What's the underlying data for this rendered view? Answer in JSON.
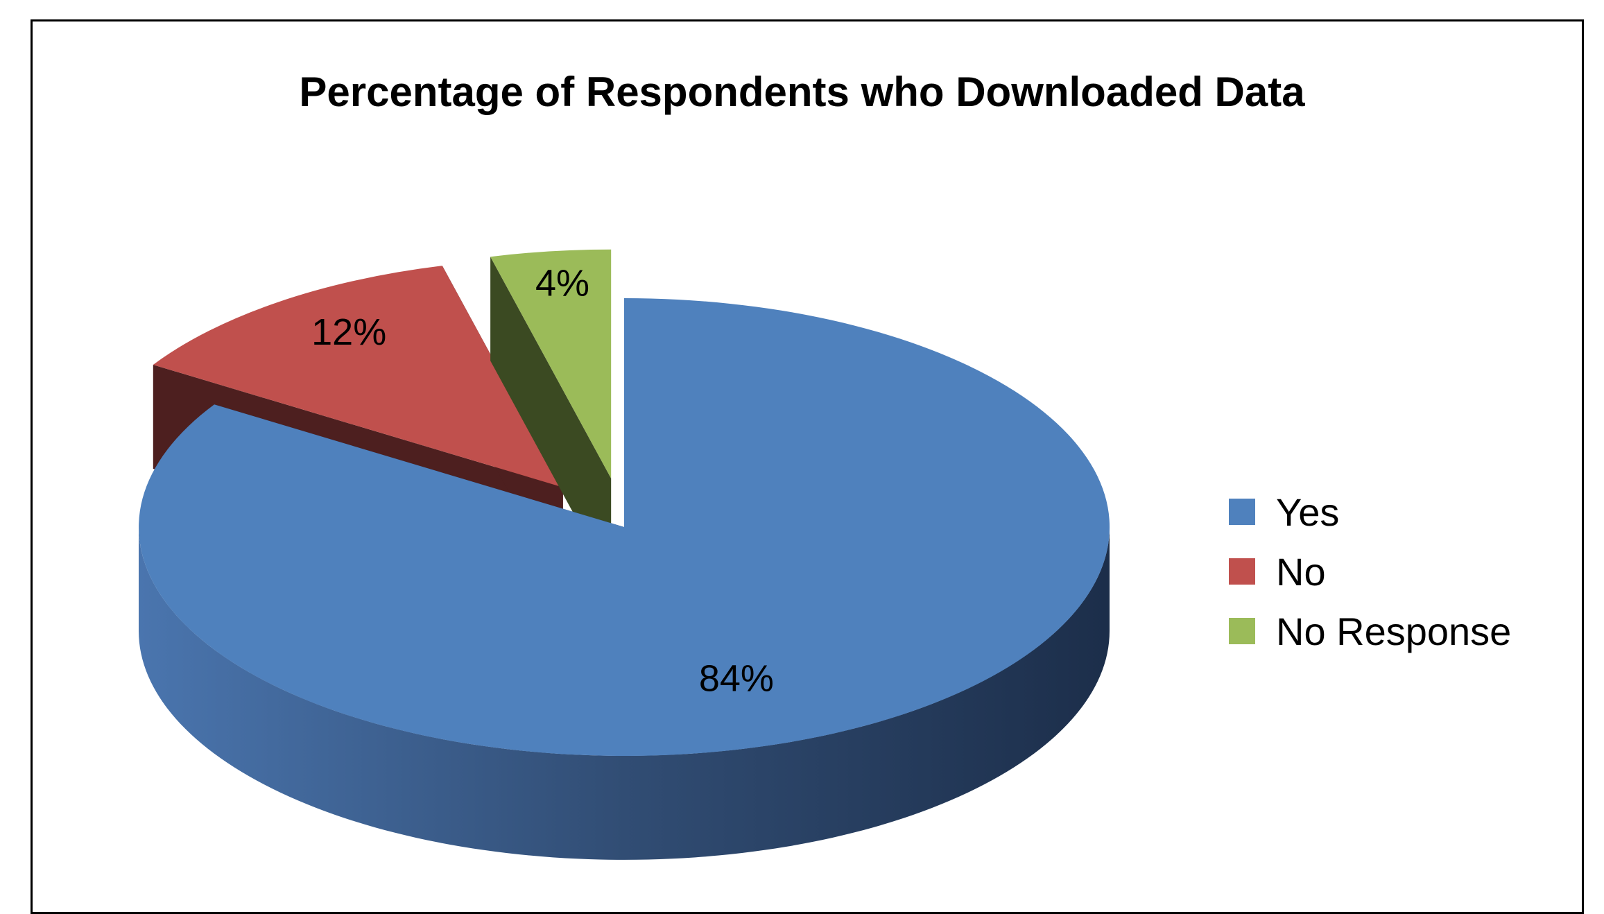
{
  "chart_data": {
    "type": "pie",
    "title": "Percentage of Respondents who Downloaded Data",
    "categories": [
      "Yes",
      "No",
      "No Response"
    ],
    "values": [
      84,
      12,
      4
    ],
    "data_labels": [
      "84%",
      "12%",
      "4%"
    ],
    "legend_position": "right",
    "three_d": true,
    "exploded": true,
    "colors": [
      "#4F81BD",
      "#C0504D",
      "#9BBB59"
    ]
  }
}
